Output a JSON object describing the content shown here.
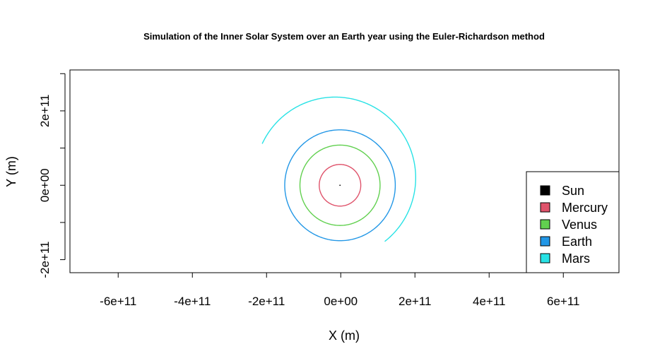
{
  "chart_data": {
    "type": "line",
    "title": "Simulation of the Inner Solar System over an Earth year using the Euler-Richardson method",
    "xlabel": "X (m)",
    "ylabel": "Y (m)",
    "xlim": [
      -730000000000.0,
      750000000000.0
    ],
    "ylim": [
      -235000000000.0,
      310000000000.0
    ],
    "x_ticks": [
      -600000000000.0,
      -400000000000.0,
      -200000000000.0,
      0,
      200000000000.0,
      400000000000.0,
      600000000000.0
    ],
    "x_tick_labels": [
      "-6e+11",
      "-4e+11",
      "-2e+11",
      "0e+00",
      "2e+11",
      "4e+11",
      "6e+11"
    ],
    "y_ticks": [
      -200000000000.0,
      -100000000000.0,
      0,
      100000000000.0,
      200000000000.0,
      300000000000.0
    ],
    "y_tick_labels": [
      "-2e+11",
      "",
      "0e+00",
      "",
      "2e+11",
      ""
    ],
    "grid": false,
    "legend_position": "bottom-right",
    "series": [
      {
        "name": "Sun",
        "color": "#000000",
        "orbit_radius": 0,
        "center": [
          -2000000000.0,
          0
        ],
        "start_angle_deg": 0,
        "end_angle_deg": 0,
        "full_orbit": false
      },
      {
        "name": "Mercury",
        "color": "#DF536B",
        "orbit_radius": 56000000000.0,
        "center": [
          -2000000000.0,
          0
        ],
        "start_angle_deg": 0,
        "end_angle_deg": 360,
        "full_orbit": true
      },
      {
        "name": "Venus",
        "color": "#61D04F",
        "orbit_radius": 108000000000.0,
        "center": [
          -2000000000.0,
          0
        ],
        "start_angle_deg": 0,
        "end_angle_deg": 360,
        "full_orbit": true
      },
      {
        "name": "Earth",
        "color": "#2297E6",
        "orbit_radius": 149000000000.0,
        "center": [
          -2000000000.0,
          0
        ],
        "start_angle_deg": 0,
        "end_angle_deg": 360,
        "full_orbit": true
      },
      {
        "name": "Mars",
        "color": "#28E2E5",
        "orbit_radius": 217000000000.0,
        "center": [
          -15000000000.0,
          20000000000.0
        ],
        "start_angle_deg": -52,
        "end_angle_deg": 155,
        "full_orbit": false
      }
    ]
  }
}
